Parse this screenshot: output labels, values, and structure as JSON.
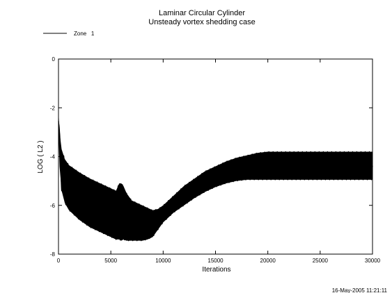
{
  "chart_data": {
    "type": "line",
    "title": "Laminar Circular Cylinder",
    "subtitle": "Unsteady vortex shedding case",
    "xlabel": "Iterations",
    "ylabel": "LOG ( L2 )",
    "xlim": [
      0,
      30000
    ],
    "ylim": [
      -8,
      0
    ],
    "x_ticks": [
      0,
      5000,
      10000,
      15000,
      20000,
      25000,
      30000
    ],
    "y_ticks": [
      0,
      -2,
      -4,
      -6,
      -8
    ],
    "grid": false,
    "legend_position": "top-left",
    "timestamp": "16-May-2005 11:21:11",
    "series": [
      {
        "name": "Zone   1",
        "color": "#000000",
        "style": "oscillating band",
        "upper_envelope": {
          "x": [
            0,
            100,
            300,
            600,
            1000,
            2000,
            3000,
            4000,
            5000,
            5500,
            5800,
            6000,
            6200,
            6500,
            7000,
            8000,
            8500,
            9000,
            9500,
            10000,
            11000,
            12000,
            13000,
            14000,
            15000,
            16000,
            17000,
            18000,
            19000,
            20000,
            25000,
            30000
          ],
          "y": [
            -2.1,
            -3.0,
            -3.7,
            -4.1,
            -4.35,
            -4.65,
            -4.9,
            -5.1,
            -5.3,
            -5.4,
            -5.1,
            -5.1,
            -5.2,
            -5.5,
            -5.8,
            -6.0,
            -6.1,
            -6.2,
            -6.15,
            -6.0,
            -5.6,
            -5.2,
            -4.9,
            -4.6,
            -4.4,
            -4.2,
            -4.05,
            -3.95,
            -3.85,
            -3.8,
            -3.8,
            -3.8
          ]
        },
        "lower_envelope": {
          "x": [
            0,
            100,
            300,
            600,
            1000,
            2000,
            3000,
            4000,
            5000,
            5500,
            5800,
            6000,
            6200,
            6500,
            7000,
            8000,
            8500,
            9000,
            9500,
            10000,
            11000,
            12000,
            13000,
            14000,
            15000,
            16000,
            17000,
            18000,
            19000,
            20000,
            25000,
            30000
          ],
          "y": [
            -3.0,
            -4.4,
            -5.4,
            -5.9,
            -6.2,
            -6.6,
            -6.9,
            -7.1,
            -7.3,
            -7.4,
            -7.4,
            -7.45,
            -7.4,
            -7.45,
            -7.45,
            -7.45,
            -7.4,
            -7.3,
            -7.0,
            -6.7,
            -6.3,
            -6.0,
            -5.7,
            -5.45,
            -5.25,
            -5.1,
            -5.0,
            -4.95,
            -4.95,
            -4.95,
            -4.95,
            -4.95
          ]
        }
      }
    ]
  }
}
